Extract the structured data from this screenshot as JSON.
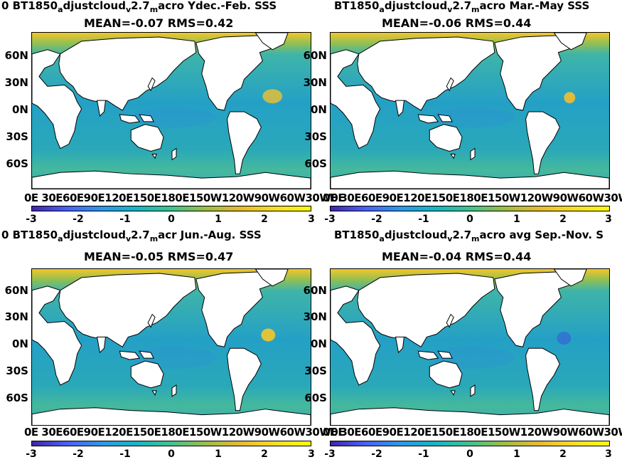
{
  "panels": [
    {
      "title_prefix": "0 BT1850",
      "title_sub1": "a",
      "title_mid1": "djustcloud",
      "title_sub2": "v",
      "title_mid2": "2.7",
      "title_sub3": "m",
      "title_tail": "acro Ydec.-Feb. SSS",
      "stats": "MEAN=-0.07   RMS=0.42"
    },
    {
      "title_prefix": "BT1850",
      "title_sub1": "a",
      "title_mid1": "djustcloud",
      "title_sub2": "v",
      "title_mid2": "2.7",
      "title_sub3": "m",
      "title_tail": "acro Mar.-May SSS",
      "stats": "MEAN=-0.06   RMS=0.44"
    },
    {
      "title_prefix": "0 BT1850",
      "title_sub1": "a",
      "title_mid1": "djustcloud",
      "title_sub2": "v",
      "title_mid2": "2.7",
      "title_sub3": "m",
      "title_tail": "acr Jun.-Aug. SSS",
      "stats": "MEAN=-0.05   RMS=0.47"
    },
    {
      "title_prefix": "BT1850",
      "title_sub1": "a",
      "title_mid1": "djustcloud",
      "title_sub2": "v",
      "title_mid2": "2.7",
      "title_sub3": "m",
      "title_tail": "acro avg Sep.-Nov. S",
      "stats": "MEAN=-0.04   RMS=0.44"
    }
  ],
  "lat_ticks": [
    "60N",
    "30N",
    "0N",
    "30S",
    "60S"
  ],
  "lon_ticks": "0E 30E60E90E120E150E180E150W120W90W60W30W0E",
  "colorbar_ticks": [
    "-3",
    "-2",
    "-1",
    "0",
    "1",
    "2",
    "3"
  ],
  "colors": {
    "ocean_main": "#1fa5b8",
    "ocean_light": "#4bbfa0",
    "arctic_high": "#f6cf2a",
    "colormap": "parula"
  }
}
